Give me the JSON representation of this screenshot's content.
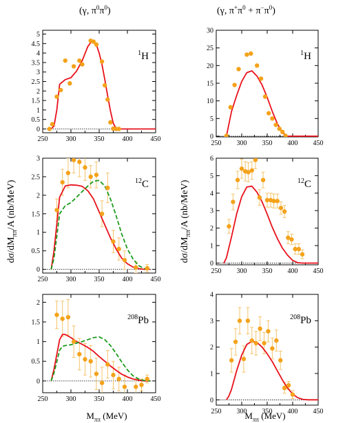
{
  "figure": {
    "col_titles": [
      {
        "pre": "(γ, π",
        "s1": "0",
        "mid": "π",
        "s2": "0",
        "post": ")"
      },
      {
        "pre": "(γ,  π",
        "s1": "+",
        "mid": "π",
        "s2": "0",
        "mid2": " + π",
        "s3": "−",
        "mid3": "π",
        "s4": "0",
        "post": ")"
      }
    ],
    "ylabel": "dσ/dM",
    "ylabel_sub": "ππ",
    "ylabel_post": "/A (nb/MeV)",
    "xlabel": "M",
    "xlabel_sub": "ππ",
    "xlabel_post": " (MeV)"
  },
  "colors": {
    "model_solid": "#e8101a",
    "model_dashed": "#1a9a1a",
    "data_points": "#f4a21b",
    "error_bars": "#f4c36a"
  },
  "chart_data": [
    {
      "type": "line",
      "id": "p11",
      "nucleus": {
        "mass": "1",
        "sym": "H"
      },
      "xlim": [
        250,
        450
      ],
      "ylim": [
        -0.2,
        5.2
      ],
      "xticks": [
        "250",
        "300",
        "350",
        "400",
        "450"
      ],
      "yticks": [
        "0",
        "0.5",
        "1",
        "1.5",
        "2",
        "2.5",
        "3",
        "3.5",
        "4",
        "4.5",
        "5"
      ],
      "series": [
        {
          "style": "solid",
          "color": "#e8101a",
          "x": [
            265,
            270,
            275,
            280,
            290,
            300,
            310,
            320,
            330,
            335,
            340,
            345,
            350,
            355,
            360,
            365,
            370,
            375,
            380,
            385,
            400,
            450
          ],
          "y": [
            0,
            0.15,
            1.0,
            2.35,
            2.6,
            2.7,
            3.05,
            3.6,
            4.35,
            4.55,
            4.6,
            4.45,
            4.0,
            3.4,
            2.6,
            1.75,
            0.95,
            0.3,
            0.02,
            0,
            0,
            0
          ]
        }
      ],
      "points": [
        {
          "x": 262,
          "y": 0.0
        },
        {
          "x": 267,
          "y": 0.25
        },
        {
          "x": 275,
          "y": 1.7
        },
        {
          "x": 282,
          "y": 2.05
        },
        {
          "x": 290,
          "y": 3.6
        },
        {
          "x": 298,
          "y": 2.4
        },
        {
          "x": 305,
          "y": 3.3
        },
        {
          "x": 315,
          "y": 3.6
        },
        {
          "x": 320,
          "y": 3.4
        },
        {
          "x": 335,
          "y": 4.65
        },
        {
          "x": 340,
          "y": 4.6
        },
        {
          "x": 345,
          "y": 4.45
        },
        {
          "x": 355,
          "y": 3.55
        },
        {
          "x": 360,
          "y": 2.3
        },
        {
          "x": 365,
          "y": 1.55
        },
        {
          "x": 370,
          "y": 0.35
        },
        {
          "x": 375,
          "y": 0.02
        },
        {
          "x": 380,
          "y": 0.0
        },
        {
          "x": 385,
          "y": 0.0
        }
      ]
    },
    {
      "type": "line",
      "id": "p12",
      "nucleus": {
        "mass": "1",
        "sym": "H"
      },
      "xlim": [
        250,
        450
      ],
      "ylim": [
        -0.2,
        30
      ],
      "xticks": [
        "250",
        "300",
        "350",
        "400",
        "450"
      ],
      "yticks": [
        "0",
        "5",
        "10",
        "15",
        "20",
        "25",
        "30"
      ],
      "series": [
        {
          "style": "solid",
          "color": "#e8101a",
          "x": [
            270,
            280,
            290,
            300,
            310,
            320,
            330,
            340,
            350,
            360,
            370,
            380,
            390,
            450
          ],
          "y": [
            0,
            7,
            11.5,
            15.5,
            18,
            18.5,
            17,
            14.5,
            11,
            7,
            3.5,
            1,
            0,
            0
          ]
        }
      ],
      "points": [
        {
          "x": 270,
          "y": 0.1
        },
        {
          "x": 278,
          "y": 8.2
        },
        {
          "x": 286,
          "y": 14.5
        },
        {
          "x": 294,
          "y": 19
        },
        {
          "x": 310,
          "y": 23.1
        },
        {
          "x": 318,
          "y": 23.4
        },
        {
          "x": 330,
          "y": 20
        },
        {
          "x": 338,
          "y": 16.3
        },
        {
          "x": 346,
          "y": 11.2
        },
        {
          "x": 353,
          "y": 6.5
        },
        {
          "x": 360,
          "y": 5
        },
        {
          "x": 367,
          "y": 3.2
        },
        {
          "x": 374,
          "y": 2.1
        },
        {
          "x": 380,
          "y": 1.2
        },
        {
          "x": 386,
          "y": 0.1
        }
      ]
    },
    {
      "type": "line",
      "id": "p21",
      "nucleus": {
        "mass": "12",
        "sym": "C"
      },
      "xlim": [
        250,
        450
      ],
      "ylim": [
        -0.1,
        3.0
      ],
      "xticks": [
        "250",
        "300",
        "350",
        "400",
        "450"
      ],
      "yticks": [
        "0",
        "0.5",
        "1",
        "1.5",
        "2",
        "2.5",
        "3"
      ],
      "series": [
        {
          "style": "solid",
          "color": "#e8101a",
          "x": [
            265,
            270,
            280,
            290,
            300,
            310,
            320,
            330,
            340,
            350,
            360,
            370,
            380,
            390,
            400,
            410,
            420,
            430,
            440
          ],
          "y": [
            0,
            0.5,
            1.95,
            2.25,
            2.28,
            2.27,
            2.24,
            2.12,
            1.9,
            1.55,
            1.2,
            0.85,
            0.55,
            0.3,
            0.15,
            0.06,
            0.02,
            0,
            0
          ]
        },
        {
          "style": "dashed",
          "color": "#1a9a1a",
          "x": [
            265,
            270,
            280,
            290,
            300,
            310,
            320,
            330,
            340,
            350,
            360,
            370,
            380,
            390,
            400,
            410,
            420,
            430,
            440
          ],
          "y": [
            0,
            0.3,
            1.5,
            1.72,
            1.8,
            1.95,
            2.1,
            2.25,
            2.38,
            2.4,
            2.25,
            1.9,
            1.45,
            0.95,
            0.55,
            0.28,
            0.1,
            0.02,
            0
          ]
        }
      ],
      "points": [
        {
          "x": 275,
          "y": 1.6,
          "e": 0.3
        },
        {
          "x": 285,
          "y": 2.35,
          "e": 0.35
        },
        {
          "x": 295,
          "y": 2.6,
          "e": 0.4
        },
        {
          "x": 305,
          "y": 2.95,
          "e": 0.35
        },
        {
          "x": 315,
          "y": 2.9,
          "e": 0.4
        },
        {
          "x": 325,
          "y": 2.75,
          "e": 0.35
        },
        {
          "x": 335,
          "y": 2.5,
          "e": 0.3
        },
        {
          "x": 345,
          "y": 2.55,
          "e": 0.35
        },
        {
          "x": 355,
          "y": 1.5,
          "e": 0.35
        },
        {
          "x": 365,
          "y": 2.2,
          "e": 0.4
        },
        {
          "x": 375,
          "y": 0.75,
          "e": 0.3
        },
        {
          "x": 385,
          "y": 0.55,
          "e": 0.3
        },
        {
          "x": 395,
          "y": 0.25,
          "e": 0.25
        },
        {
          "x": 415,
          "y": 0.05,
          "e": 0.15
        },
        {
          "x": 435,
          "y": 0.03,
          "e": 0.1
        }
      ]
    },
    {
      "type": "line",
      "id": "p22",
      "nucleus": {
        "mass": "12",
        "sym": "C"
      },
      "xlim": [
        250,
        450
      ],
      "ylim": [
        -0.1,
        6.0
      ],
      "xticks": [
        "250",
        "300",
        "350",
        "400",
        "450"
      ],
      "yticks": [
        "0",
        "1",
        "2",
        "3",
        "4",
        "5",
        "6"
      ],
      "series": [
        {
          "style": "solid",
          "color": "#e8101a",
          "x": [
            265,
            270,
            280,
            290,
            300,
            310,
            320,
            330,
            340,
            350,
            360,
            370,
            380,
            390,
            400,
            410,
            420,
            450
          ],
          "y": [
            0,
            0.3,
            1.5,
            2.8,
            3.8,
            4.35,
            4.4,
            4.05,
            3.5,
            2.8,
            2.05,
            1.4,
            0.85,
            0.45,
            0.15,
            0.02,
            0,
            0
          ]
        }
      ],
      "points": [
        {
          "x": 275,
          "y": 2.1,
          "e": 0.4
        },
        {
          "x": 283,
          "y": 3.5,
          "e": 0.45
        },
        {
          "x": 292,
          "y": 4.75,
          "e": 0.5
        },
        {
          "x": 300,
          "y": 5.4,
          "e": 0.55
        },
        {
          "x": 307,
          "y": 5.25,
          "e": 0.55
        },
        {
          "x": 313,
          "y": 5.2,
          "e": 0.55
        },
        {
          "x": 320,
          "y": 5.3,
          "e": 0.5
        },
        {
          "x": 327,
          "y": 5.9,
          "e": 0.5
        },
        {
          "x": 335,
          "y": 3.75,
          "e": 0.45
        },
        {
          "x": 342,
          "y": 4.75,
          "e": 0.45
        },
        {
          "x": 350,
          "y": 3.6,
          "e": 0.4
        },
        {
          "x": 357,
          "y": 3.6,
          "e": 0.4
        },
        {
          "x": 363,
          "y": 3.55,
          "e": 0.4
        },
        {
          "x": 370,
          "y": 3.55,
          "e": 0.4
        },
        {
          "x": 377,
          "y": 3.15,
          "e": 0.35
        },
        {
          "x": 384,
          "y": 2.95,
          "e": 0.35
        },
        {
          "x": 391,
          "y": 1.45,
          "e": 0.35
        },
        {
          "x": 398,
          "y": 1.35,
          "e": 0.3
        },
        {
          "x": 405,
          "y": 0.8,
          "e": 0.3
        },
        {
          "x": 412,
          "y": 0.8,
          "e": 0.3
        },
        {
          "x": 419,
          "y": 0.5,
          "e": 0.25
        }
      ]
    },
    {
      "type": "line",
      "id": "p31",
      "nucleus": {
        "mass": "208",
        "sym": "Pb"
      },
      "xlim": [
        250,
        450
      ],
      "ylim": [
        -0.3,
        2.2
      ],
      "xticks": [
        "250",
        "300",
        "350",
        "400",
        "450"
      ],
      "yticks": [
        "0",
        "0.5",
        "1",
        "1.5",
        "2"
      ],
      "series": [
        {
          "style": "solid",
          "color": "#e8101a",
          "x": [
            265,
            270,
            280,
            285,
            290,
            300,
            310,
            320,
            330,
            340,
            350,
            360,
            370,
            380,
            390,
            400,
            410,
            420,
            430,
            440
          ],
          "y": [
            0,
            0.3,
            1.05,
            1.18,
            1.18,
            1.1,
            1.0,
            0.93,
            0.85,
            0.75,
            0.62,
            0.5,
            0.38,
            0.27,
            0.17,
            0.1,
            0.05,
            0.02,
            0,
            0
          ]
        },
        {
          "style": "dashed",
          "color": "#1a9a1a",
          "x": [
            265,
            270,
            280,
            285,
            290,
            300,
            310,
            320,
            330,
            340,
            350,
            360,
            370,
            380,
            390,
            400,
            410,
            420,
            430,
            440
          ],
          "y": [
            0,
            0.2,
            0.78,
            0.88,
            0.9,
            0.92,
            0.96,
            1.0,
            1.05,
            1.1,
            1.12,
            1.05,
            0.9,
            0.7,
            0.48,
            0.28,
            0.13,
            0.05,
            0.01,
            0
          ]
        }
      ],
      "points": [
        {
          "x": 275,
          "y": 1.68,
          "e": 0.35
        },
        {
          "x": 285,
          "y": 1.58,
          "e": 0.45
        },
        {
          "x": 295,
          "y": 1.62,
          "e": 0.45
        },
        {
          "x": 305,
          "y": 1.0,
          "e": 0.4
        },
        {
          "x": 315,
          "y": 0.68,
          "e": 0.4
        },
        {
          "x": 325,
          "y": 0.55,
          "e": 0.4
        },
        {
          "x": 335,
          "y": 0.5,
          "e": 0.4
        },
        {
          "x": 345,
          "y": 0.18,
          "e": 0.4
        },
        {
          "x": 355,
          "y": -0.05,
          "e": 0.4
        },
        {
          "x": 365,
          "y": 0.42,
          "e": 0.35
        },
        {
          "x": 375,
          "y": 0.15,
          "e": 0.35
        },
        {
          "x": 385,
          "y": 0.05,
          "e": 0.3
        },
        {
          "x": 395,
          "y": -0.15,
          "e": 0.3
        },
        {
          "x": 415,
          "y": -0.15,
          "e": 0.2
        },
        {
          "x": 425,
          "y": -0.1,
          "e": 0.15
        },
        {
          "x": 435,
          "y": 0.05,
          "e": 0.1
        }
      ]
    },
    {
      "type": "line",
      "id": "p32",
      "nucleus": {
        "mass": "208",
        "sym": "Pb"
      },
      "xlim": [
        250,
        450
      ],
      "ylim": [
        -0.2,
        4.0
      ],
      "xticks": [
        "250",
        "300",
        "350",
        "400",
        "450"
      ],
      "yticks": [
        "0",
        "1",
        "2",
        "3",
        "4"
      ],
      "series": [
        {
          "style": "solid",
          "color": "#e8101a",
          "x": [
            270,
            275,
            280,
            290,
            300,
            310,
            320,
            330,
            340,
            350,
            360,
            370,
            380,
            390,
            400,
            410,
            420,
            430,
            450
          ],
          "y": [
            0,
            0.15,
            0.4,
            1.1,
            1.7,
            2.1,
            2.22,
            2.18,
            2.0,
            1.75,
            1.45,
            1.1,
            0.75,
            0.45,
            0.22,
            0.08,
            0.02,
            0,
            0
          ]
        }
      ],
      "points": [
        {
          "x": 280,
          "y": 1.5,
          "e": 0.45
        },
        {
          "x": 288,
          "y": 2.2,
          "e": 0.5
        },
        {
          "x": 296,
          "y": 3.0,
          "e": 0.5
        },
        {
          "x": 304,
          "y": 1.55,
          "e": 0.5
        },
        {
          "x": 312,
          "y": 3.0,
          "e": 0.5
        },
        {
          "x": 320,
          "y": 2.25,
          "e": 0.5
        },
        {
          "x": 328,
          "y": 2.15,
          "e": 0.45
        },
        {
          "x": 336,
          "y": 2.7,
          "e": 0.45
        },
        {
          "x": 344,
          "y": 2.15,
          "e": 0.4
        },
        {
          "x": 352,
          "y": 2.6,
          "e": 0.4
        },
        {
          "x": 360,
          "y": 1.95,
          "e": 0.4
        },
        {
          "x": 368,
          "y": 2.25,
          "e": 0.4
        },
        {
          "x": 376,
          "y": 1.5,
          "e": 0.35
        },
        {
          "x": 384,
          "y": 0.45,
          "e": 0.2
        },
        {
          "x": 392,
          "y": 0.55,
          "e": 0.15
        },
        {
          "x": 400,
          "y": 0.2,
          "e": 0.15
        }
      ]
    }
  ]
}
